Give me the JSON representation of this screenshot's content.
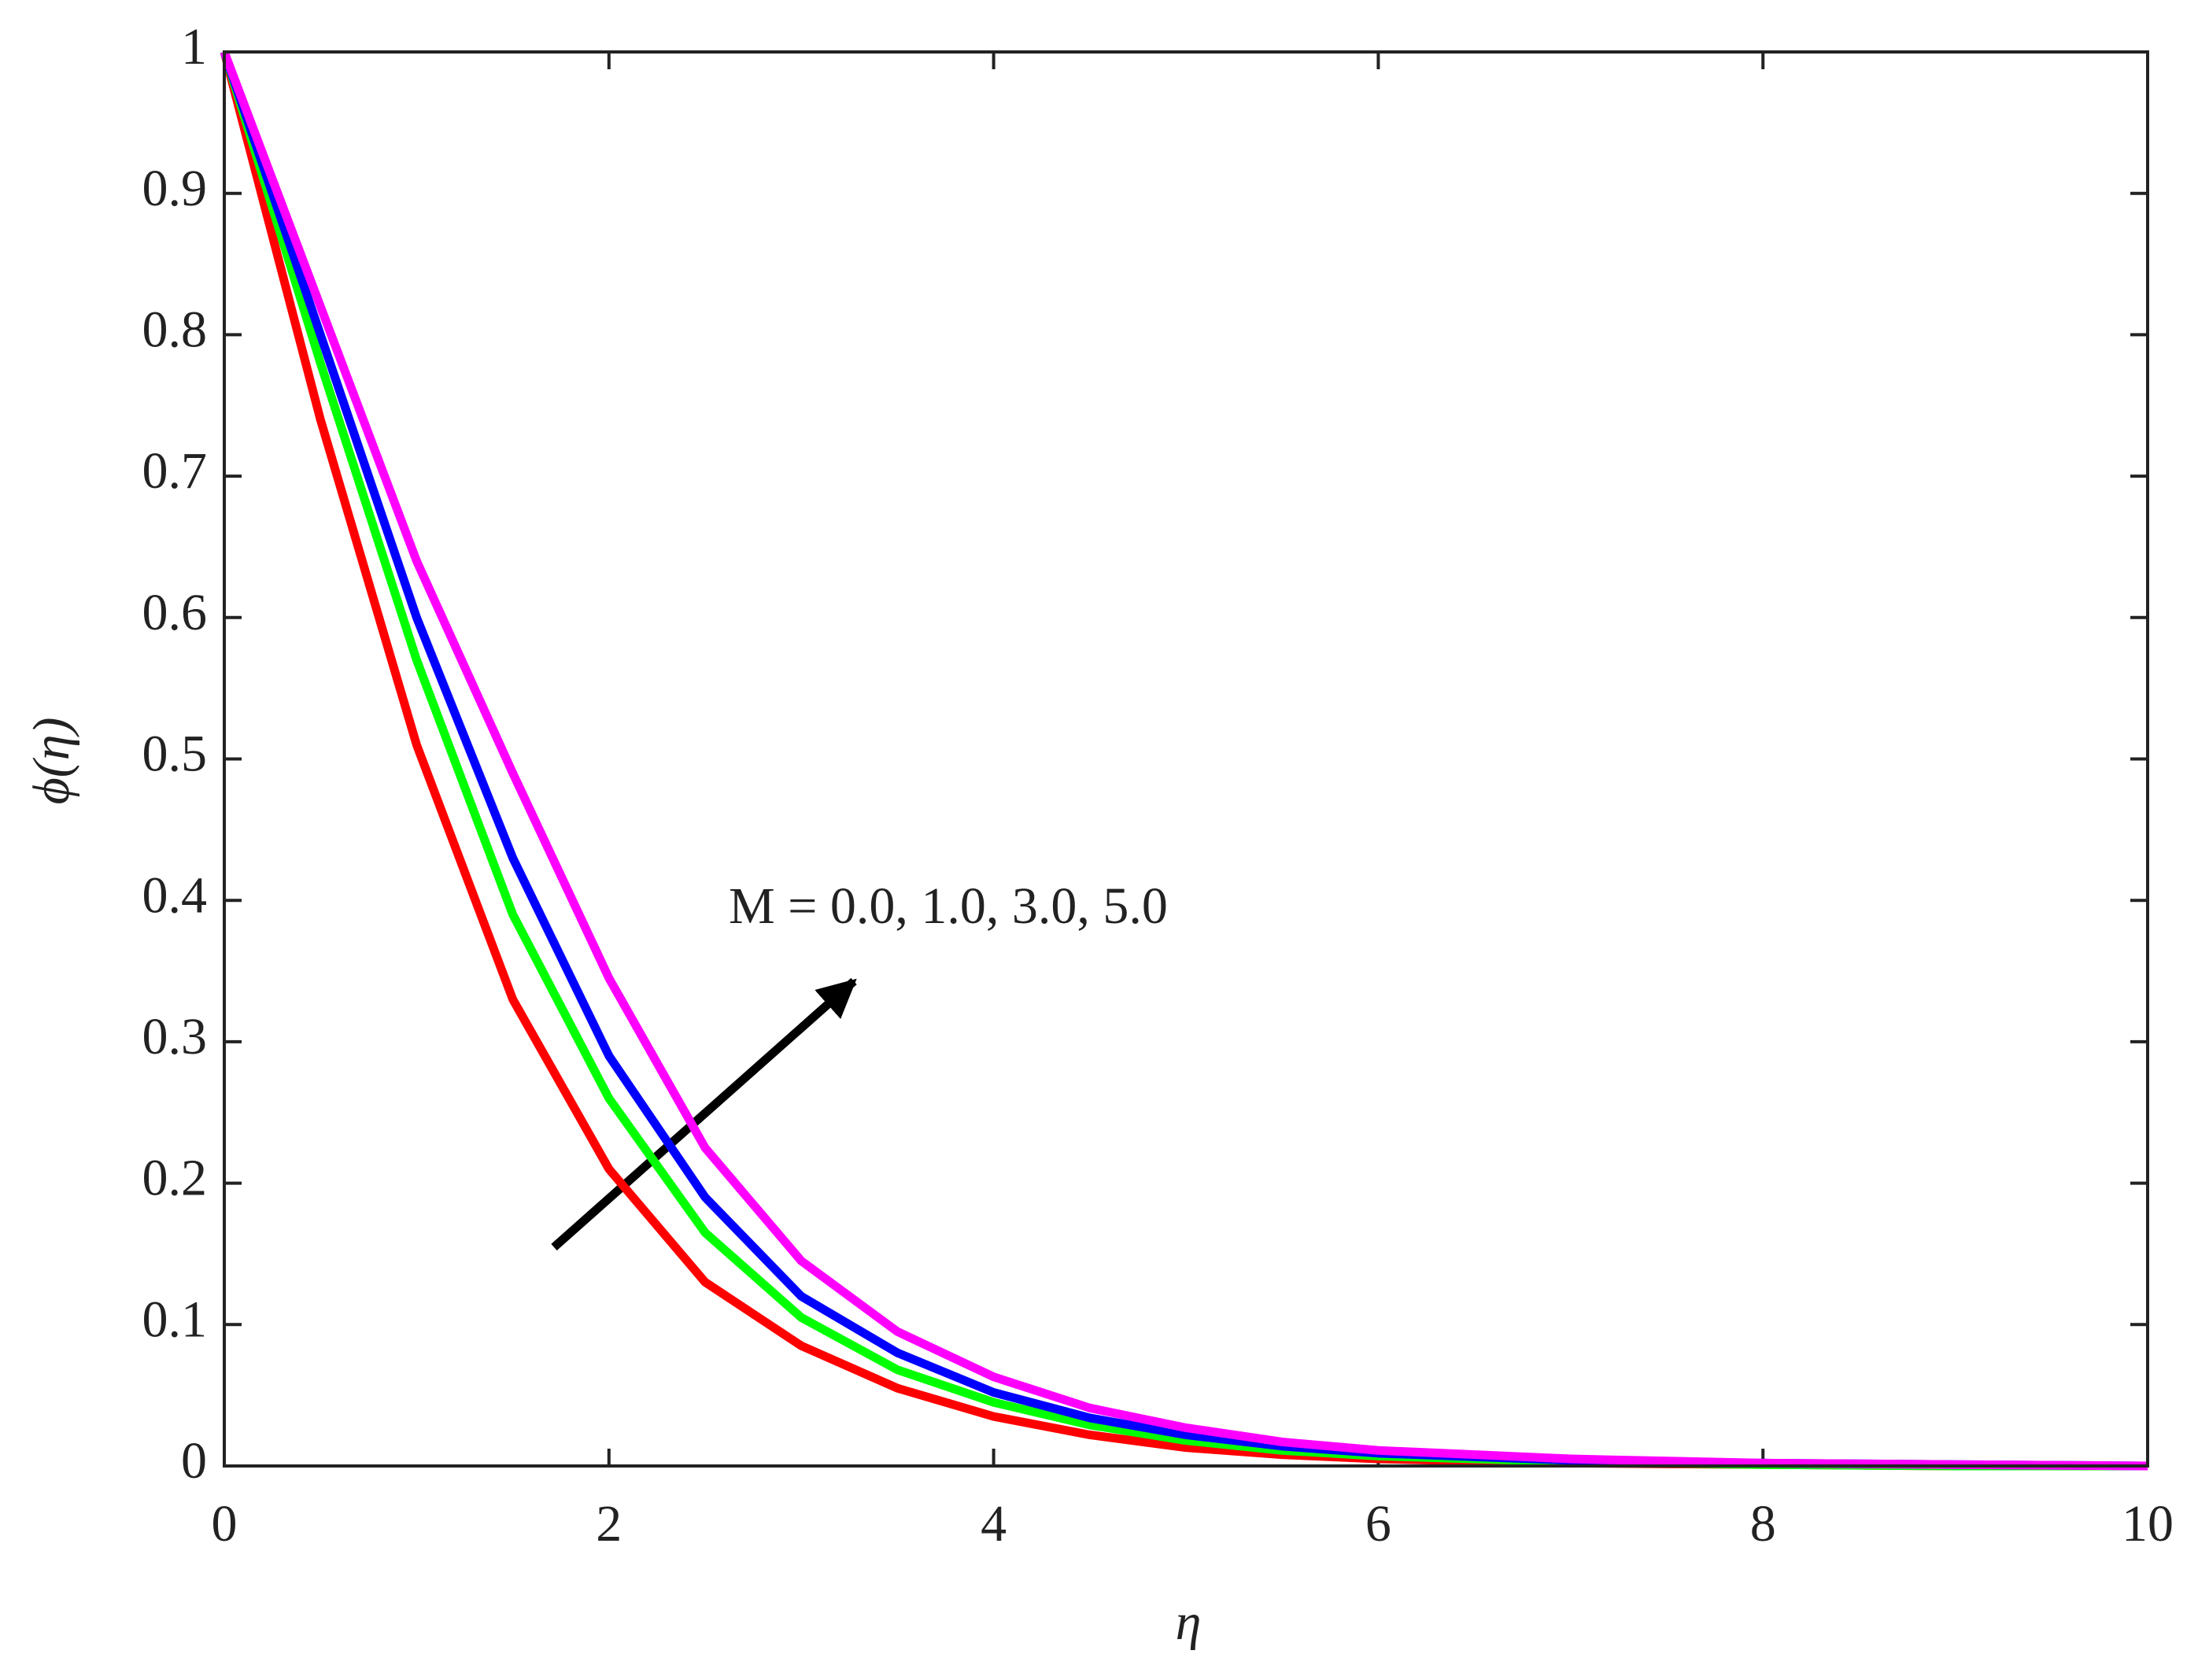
{
  "chart_data": {
    "type": "line",
    "x_label": "η",
    "y_label": "ϕ(η)",
    "annotation": "M = 0.0, 1.0, 3.0, 5.0",
    "x": [
      0,
      0.5,
      1,
      1.5,
      2,
      2.5,
      3,
      3.5,
      4,
      4.5,
      5,
      5.5,
      6,
      7,
      8,
      9,
      10
    ],
    "series": [
      {
        "color": "#ff0000",
        "values": [
          1,
          0.74,
          0.51,
          0.33,
          0.21,
          0.13,
          0.085,
          0.055,
          0.035,
          0.022,
          0.013,
          0.008,
          0.005,
          0.002,
          0.001,
          0,
          0
        ]
      },
      {
        "color": "#00ff00",
        "values": [
          1,
          0.78,
          0.57,
          0.39,
          0.26,
          0.165,
          0.105,
          0.068,
          0.045,
          0.029,
          0.018,
          0.011,
          0.007,
          0.003,
          0.001,
          0,
          0
        ]
      },
      {
        "color": "#0000ff",
        "values": [
          1,
          0.8,
          0.6,
          0.43,
          0.29,
          0.19,
          0.12,
          0.08,
          0.052,
          0.034,
          0.022,
          0.014,
          0.009,
          0.004,
          0.002,
          0.001,
          0
        ]
      },
      {
        "color": "#ff00ff",
        "values": [
          1,
          0.82,
          0.64,
          0.49,
          0.345,
          0.225,
          0.145,
          0.095,
          0.063,
          0.041,
          0.027,
          0.017,
          0.011,
          0.005,
          0.002,
          0.001,
          0
        ]
      }
    ],
    "xlim": [
      0,
      10
    ],
    "ylim": [
      0,
      1
    ],
    "xticks": [
      0,
      2,
      4,
      6,
      8,
      10
    ],
    "yticks": [
      0,
      0.1,
      0.2,
      0.3,
      0.4,
      0.5,
      0.6,
      0.7,
      0.8,
      0.9,
      1
    ],
    "grid": false
  }
}
